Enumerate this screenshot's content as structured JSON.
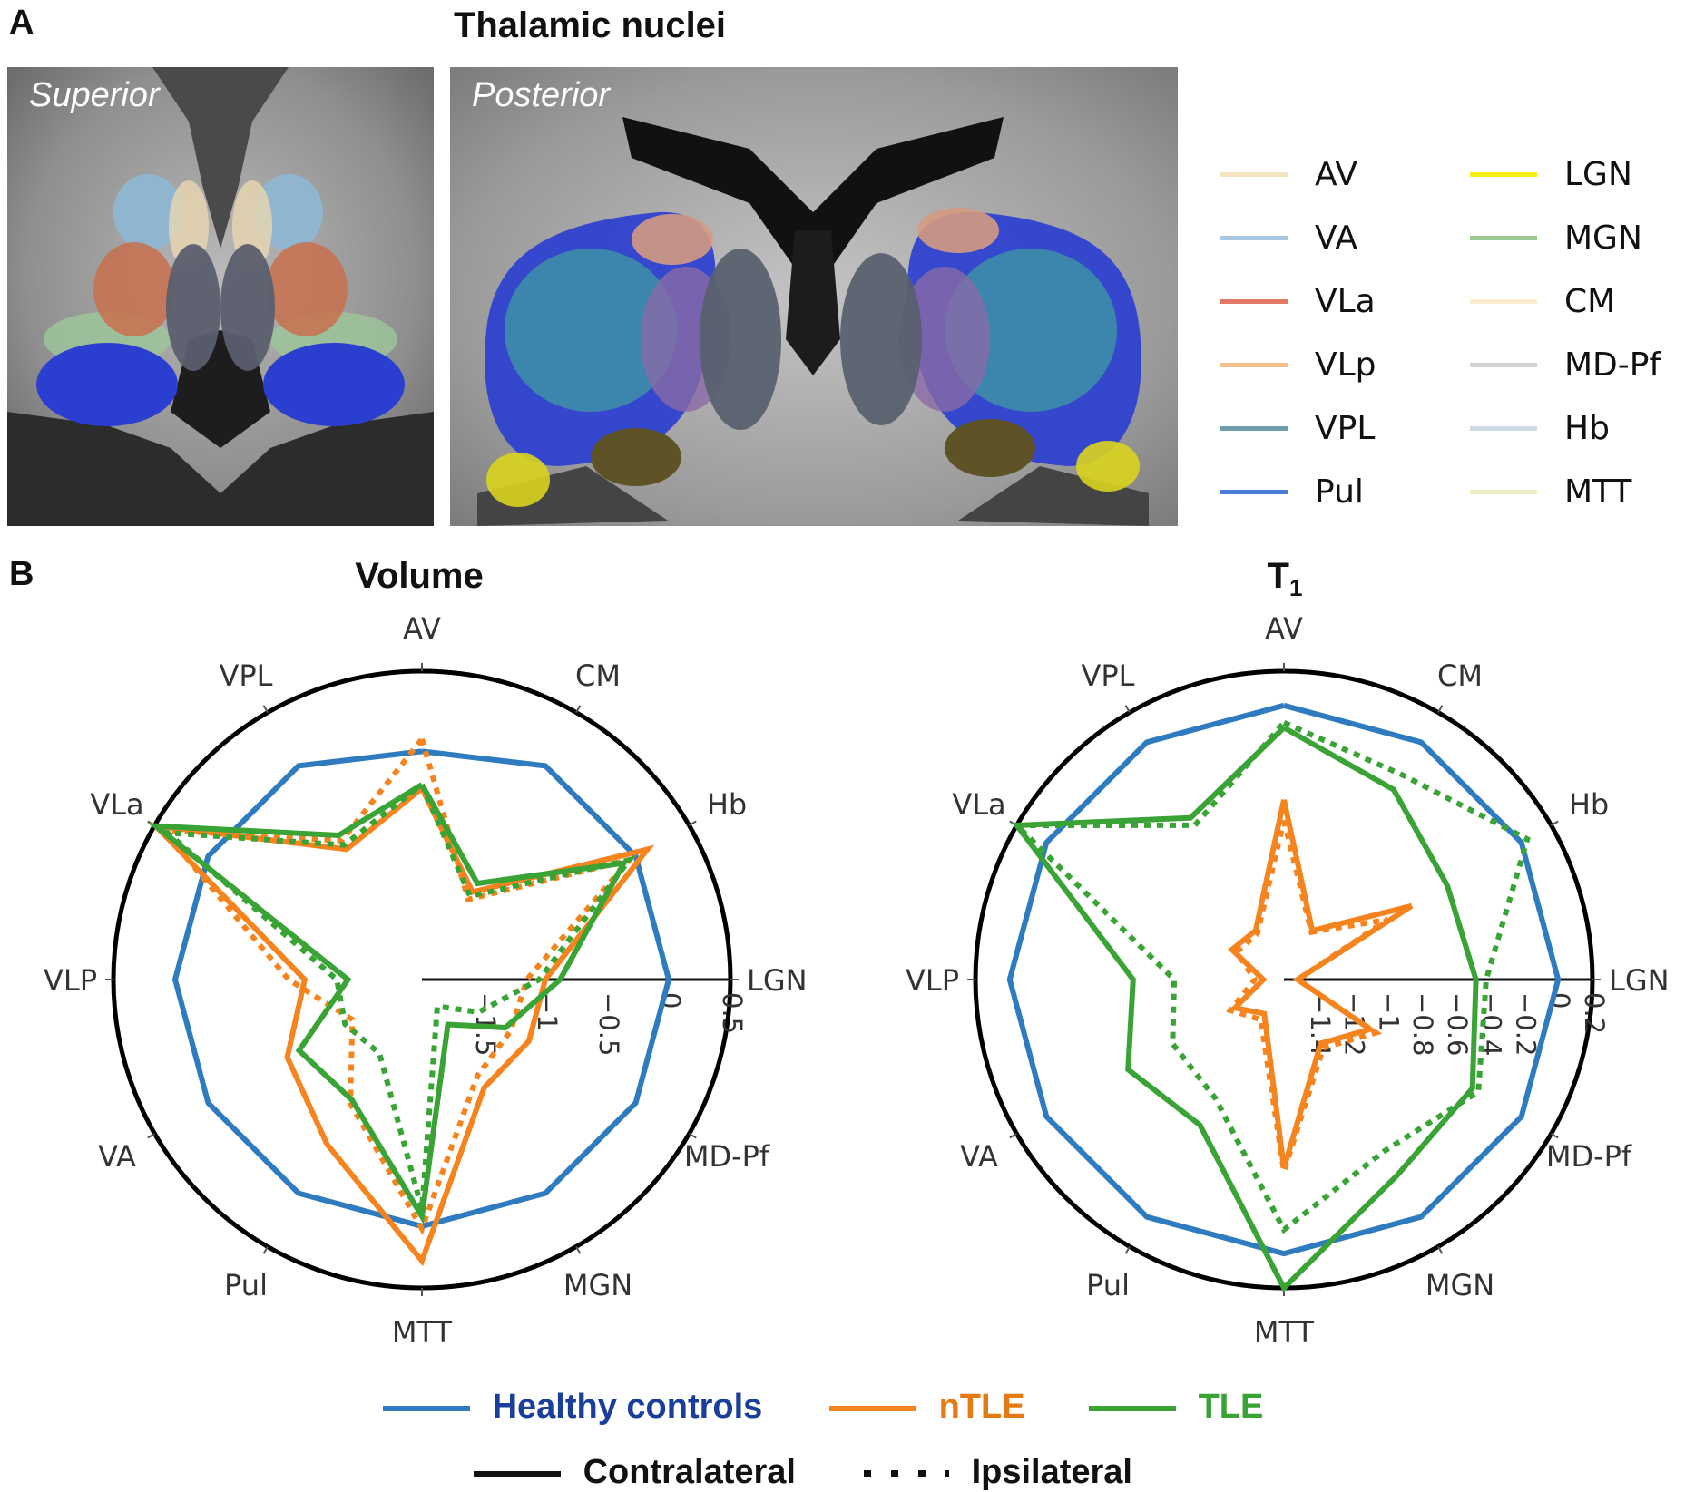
{
  "panel_a": {
    "letter": "A",
    "title": "Thalamic nuclei",
    "views": [
      {
        "label": "Superior"
      },
      {
        "label": "Posterior"
      }
    ],
    "legend": [
      {
        "label": "AV",
        "color": "#f5e3bf"
      },
      {
        "label": "VA",
        "color": "#a6c8e2"
      },
      {
        "label": "VLa",
        "color": "#e07a64"
      },
      {
        "label": "VLp",
        "color": "#f3c08c"
      },
      {
        "label": "VPL",
        "color": "#6f9eab"
      },
      {
        "label": "Pul",
        "color": "#4a7bd8"
      },
      {
        "label": "LGN",
        "color": "#f4ee1a"
      },
      {
        "label": "MGN",
        "color": "#9cc894"
      },
      {
        "label": "CM",
        "color": "#fbecd2"
      },
      {
        "label": "MD-Pf",
        "color": "#d2d2d4"
      },
      {
        "label": "Hb",
        "color": "#cddbe3"
      },
      {
        "label": "MTT",
        "color": "#eef0c3"
      }
    ]
  },
  "panel_b": {
    "letter": "B"
  },
  "colors": {
    "controls": "#2f7bbf",
    "ntle": "#f5841f",
    "tle": "#3aa336",
    "controls_text": "#1a3e9c",
    "ntle_text": "#e57a12",
    "tle_text": "#3aa336"
  },
  "chart_data": [
    {
      "type": "radar",
      "title": "Volume",
      "title_sub": "",
      "axes": [
        "AV",
        "CM",
        "Hb",
        "LGN",
        "MD-Pf",
        "MGN",
        "MTT",
        "Pul",
        "VA",
        "VLP",
        "VLa",
        "VPL"
      ],
      "rlim": [
        -2.0,
        0.5
      ],
      "rticks": [
        -1.5,
        -1,
        -0.5,
        0,
        0.5
      ],
      "rtick_labels": [
        "−1.5",
        "−1",
        "−0.5",
        "0",
        "0.5"
      ],
      "series": [
        {
          "name": "Healthy controls",
          "side": "Contralateral",
          "values": [
            -0.15,
            0.0,
            0.0,
            0.0,
            0.0,
            0.0,
            0.0,
            0.0,
            0.0,
            0.0,
            0.0,
            0.0
          ]
        },
        {
          "name": "nTLE",
          "side": "Contralateral",
          "values": [
            -0.45,
            -1.18,
            0.11,
            -1.0,
            -1.0,
            -0.99,
            0.28,
            -0.46,
            -0.74,
            -1.05,
            0.49,
            -0.78
          ]
        },
        {
          "name": "nTLE",
          "side": "Ipsilateral",
          "values": [
            -0.05,
            -1.25,
            -0.06,
            -1.15,
            -1.17,
            -1.1,
            0.02,
            -0.84,
            -1.35,
            -0.92,
            0.42,
            -0.7
          ]
        },
        {
          "name": "TLE",
          "side": "Contralateral",
          "values": [
            -0.42,
            -1.1,
            -0.11,
            -0.88,
            -1.22,
            -1.58,
            -0.08,
            -0.87,
            -0.85,
            -1.4,
            0.49,
            -0.65
          ]
        },
        {
          "name": "TLE",
          "side": "Ipsilateral",
          "values": [
            -0.42,
            -1.22,
            -0.06,
            -1.05,
            -1.47,
            -1.75,
            -0.14,
            -1.31,
            -1.28,
            -1.31,
            0.38,
            -0.74
          ]
        }
      ]
    },
    {
      "type": "radar",
      "title": "T",
      "title_sub": "1",
      "axes": [
        "AV",
        "CM",
        "Hb",
        "LGN",
        "MD-Pf",
        "MGN",
        "MTT",
        "Pul",
        "VA",
        "VLP",
        "VLa",
        "VPL"
      ],
      "rlim": [
        -1.6,
        0.2
      ],
      "rticks": [
        -1.4,
        -1.2,
        -1,
        -0.8,
        -0.6,
        -0.4,
        -0.2,
        0,
        0.2
      ],
      "rtick_labels": [
        "−1.4",
        "−1.2",
        "−1",
        "−0.8",
        "−0.6",
        "−0.4",
        "−0.2",
        "0",
        "0.2"
      ],
      "series": [
        {
          "name": "Healthy controls",
          "side": "Contralateral",
          "values": [
            0.0,
            0.0,
            0.0,
            0.0,
            0.0,
            0.0,
            0.0,
            0.0,
            0.0,
            0.0,
            0.0,
            0.0
          ]
        },
        {
          "name": "nTLE",
          "side": "Contralateral",
          "values": [
            -0.55,
            -1.27,
            -0.74,
            -1.52,
            -1.02,
            -1.17,
            -0.5,
            -1.37,
            -1.27,
            -1.48,
            -1.25,
            -1.27
          ]
        },
        {
          "name": "nTLE",
          "side": "Ipsilateral",
          "values": [
            -0.67,
            -1.28,
            -0.9,
            -1.52,
            -0.98,
            -1.14,
            -0.48,
            -1.33,
            -1.24,
            -1.43,
            -1.28,
            -1.29
          ]
        },
        {
          "name": "TLE",
          "side": "Contralateral",
          "values": [
            -0.13,
            -0.32,
            -0.5,
            -0.48,
            -0.33,
            -0.28,
            0.2,
            -0.62,
            -0.55,
            -0.72,
            0.2,
            -0.51
          ]
        },
        {
          "name": "TLE",
          "side": "Ipsilateral",
          "values": [
            -0.1,
            -0.22,
            0.04,
            -0.42,
            -0.29,
            -0.44,
            -0.14,
            -0.8,
            -0.85,
            -0.96,
            0.2,
            -0.56
          ]
        }
      ]
    }
  ],
  "legend_b": {
    "groups": [
      {
        "label": "Healthy controls",
        "color": "#2f7bbf",
        "text_color": "#1a3e9c"
      },
      {
        "label": "nTLE",
        "color": "#f5841f",
        "text_color": "#e57a12"
      },
      {
        "label": "TLE",
        "color": "#3aa336",
        "text_color": "#3aa336"
      }
    ],
    "styles": [
      {
        "label": "Contralateral"
      },
      {
        "label": "Ipsilateral"
      }
    ]
  }
}
